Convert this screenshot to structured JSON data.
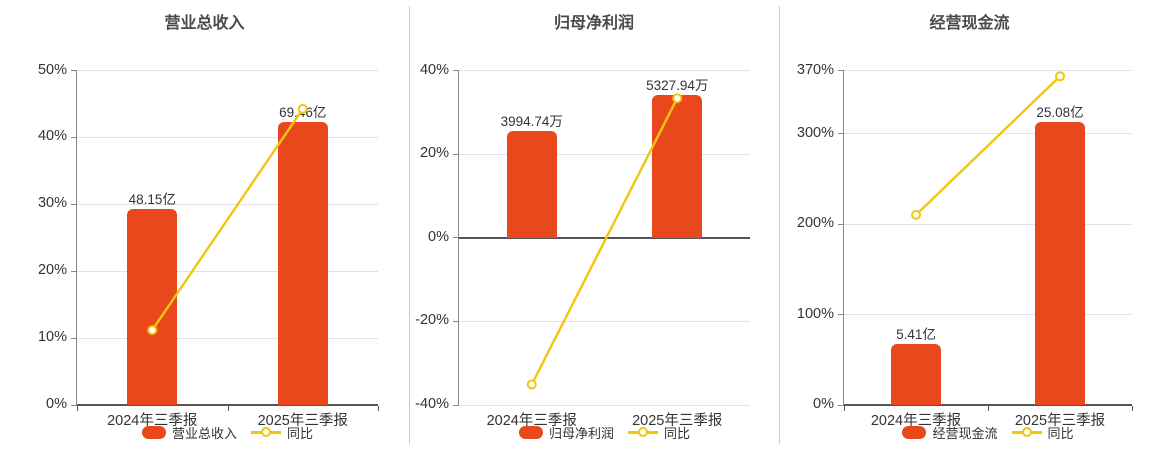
{
  "colors": {
    "background": "#ffffff",
    "bar": "#E8481C",
    "line": "#F2C50F",
    "grid": "#E0E3EC",
    "zero_axis": "#555555",
    "y_axis_line": "#888888",
    "tick_text": "#333333",
    "title_text": "#4A4A4A",
    "value_text": "#333333",
    "divider": "#CCCCCC",
    "marker_fill": "#ffffff"
  },
  "chart_data": [
    {
      "type": "bar+line",
      "title": "营业总收入",
      "categories": [
        "2024年三季报",
        "2025年三季报"
      ],
      "bar_series": {
        "name": "营业总收入",
        "unit": "亿",
        "values": [
          48.15,
          69.46
        ],
        "labels": [
          "48.15亿",
          "69.46亿"
        ]
      },
      "line_series": {
        "name": "同比",
        "values_pct": [
          11.2,
          44.26
        ]
      },
      "y_axis": {
        "min": 0,
        "max": 50,
        "ticks": [
          0,
          10,
          20,
          30,
          40,
          50
        ],
        "tick_labels": [
          "0%",
          "10%",
          "20%",
          "30%",
          "40%",
          "50%"
        ]
      },
      "bar_axis_heights": [
        29.33,
        42.31
      ],
      "legend": [
        "营业总收入",
        "同比"
      ],
      "grid": true,
      "legend_position": "bottom"
    },
    {
      "type": "bar+line",
      "title": "归母净利润",
      "categories": [
        "2024年三季报",
        "2025年三季报"
      ],
      "bar_series": {
        "name": "归母净利润",
        "unit": "万",
        "values": [
          3994.74,
          5327.94
        ],
        "labels": [
          "3994.74万",
          "5327.94万"
        ]
      },
      "line_series": {
        "name": "同比",
        "values_pct": [
          -35.1,
          33.37
        ]
      },
      "y_axis": {
        "min": -40,
        "max": 40,
        "ticks": [
          -40,
          -20,
          0,
          20,
          40
        ],
        "tick_labels": [
          "-40%",
          "-20%",
          "0%",
          "20%",
          "40%"
        ]
      },
      "bar_axis_heights": [
        25.6,
        34.1
      ],
      "legend": [
        "归母净利润",
        "同比"
      ],
      "grid": true,
      "legend_position": "bottom"
    },
    {
      "type": "bar+line",
      "title": "经营现金流",
      "categories": [
        "2024年三季报",
        "2025年三季报"
      ],
      "bar_series": {
        "name": "经营现金流",
        "unit": "亿",
        "values": [
          5.41,
          25.08
        ],
        "labels": [
          "5.41亿",
          "25.08亿"
        ]
      },
      "line_series": {
        "name": "同比",
        "values_pct": [
          210.3,
          363.59
        ]
      },
      "y_axis": {
        "min": 0,
        "max": 370,
        "ticks": [
          0,
          100,
          200,
          300,
          370
        ],
        "tick_labels": [
          "0%",
          "100%",
          "200%",
          "300%",
          "370%"
        ]
      },
      "bar_axis_heights": [
        67.6,
        313.2
      ],
      "legend": [
        "经营现金流",
        "同比"
      ],
      "grid": true,
      "legend_position": "bottom"
    }
  ]
}
